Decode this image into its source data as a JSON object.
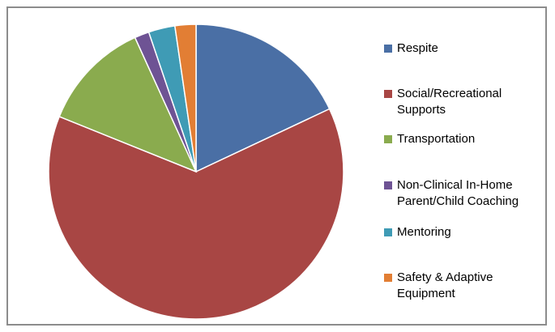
{
  "chart_data": {
    "type": "pie",
    "categories": [
      "Respite",
      "Social/Recreational Supports",
      "Transportation",
      "Non-Clinical In-Home Parent/Child Coaching",
      "Mentoring",
      "Safety & Adaptive Equipment"
    ],
    "values": [
      18.0,
      63.1,
      12.1,
      1.6,
      2.9,
      2.3
    ],
    "value_unit": "percent",
    "colors": [
      "#4a6fa5",
      "#a84644",
      "#8aab4e",
      "#6e5394",
      "#3f9bb5",
      "#e27e34"
    ],
    "legend_position": "right",
    "title": ""
  },
  "legend": {
    "items": [
      {
        "label": "Respite",
        "color": "#4a6fa5"
      },
      {
        "label": "Social/Recreational\nSupports",
        "color": "#a84644"
      },
      {
        "label": "Transportation",
        "color": "#8aab4e"
      },
      {
        "label": "Non-Clinical In-Home\nParent/Child Coaching",
        "color": "#6e5394"
      },
      {
        "label": "Mentoring",
        "color": "#3f9bb5"
      },
      {
        "label": "Safety & Adaptive\nEquipment",
        "color": "#e27e34"
      }
    ]
  }
}
